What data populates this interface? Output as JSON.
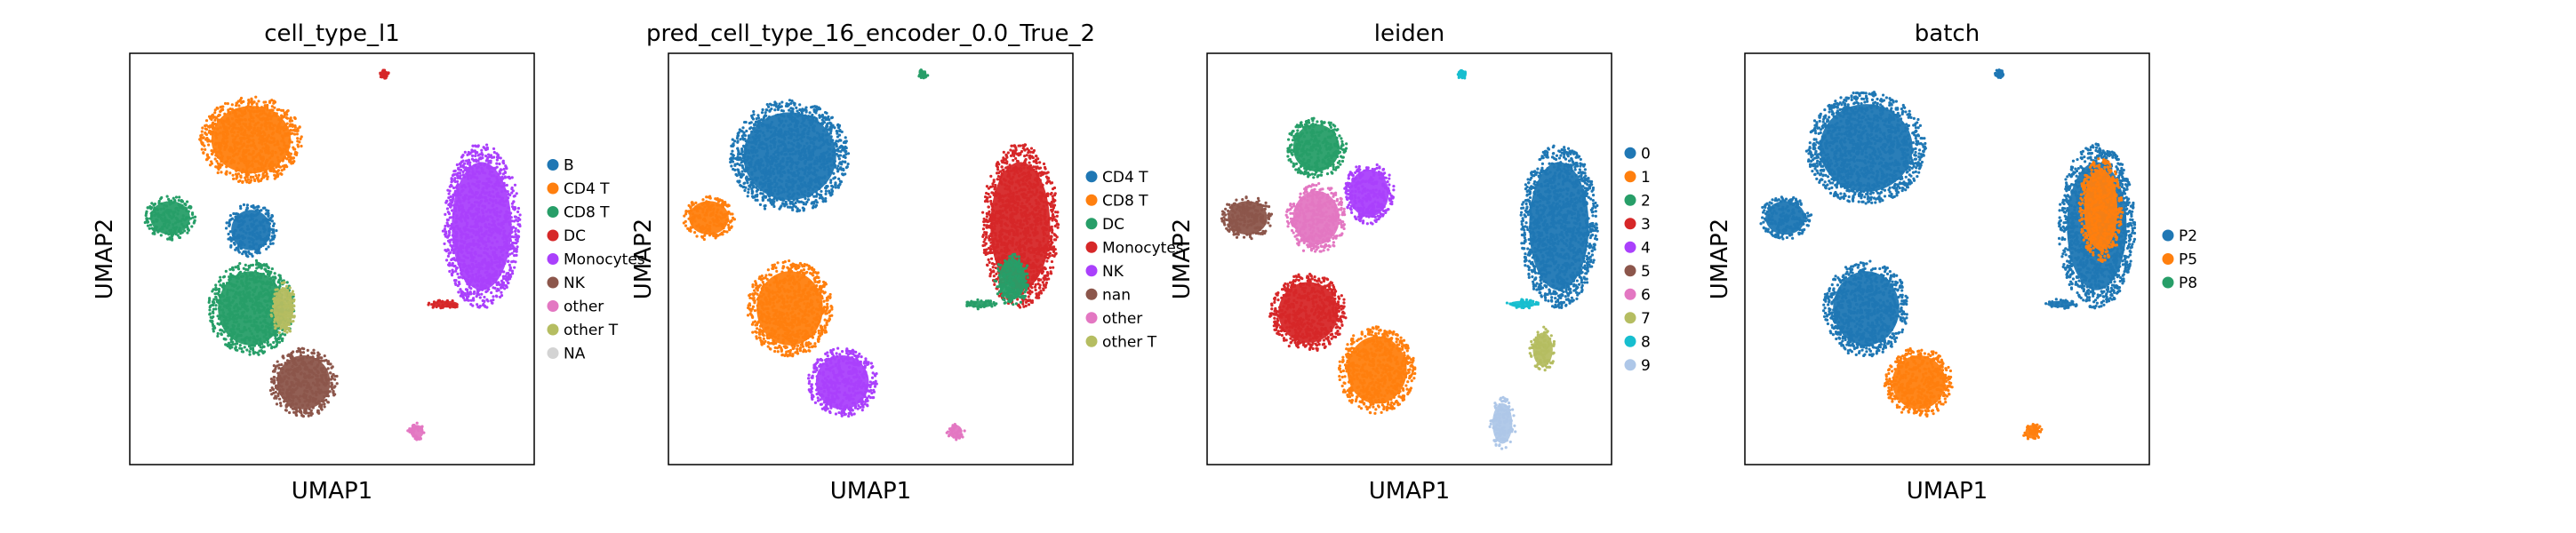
{
  "chart_data": [
    {
      "type": "scatter",
      "title": "cell_type_l1",
      "xlabel": "UMAP1",
      "ylabel": "UMAP2",
      "legend": {
        "placement": "right",
        "entries": [
          {
            "label": "B",
            "color": "#1f77b4"
          },
          {
            "label": "CD4 T",
            "color": "#ff7f0e"
          },
          {
            "label": "CD8 T",
            "color": "#279e68"
          },
          {
            "label": "DC",
            "color": "#d62728"
          },
          {
            "label": "Monocytes",
            "color": "#aa40fc"
          },
          {
            "label": "NK",
            "color": "#8c564b"
          },
          {
            "label": "other",
            "color": "#e377c2"
          },
          {
            "label": "other T",
            "color": "#b5bd61"
          },
          {
            "label": "NA",
            "color": "#d3d3d3"
          }
        ]
      },
      "clusters": [
        {
          "label": "CD4 T",
          "color": "#ff7f0e",
          "cx": 0.3,
          "cy": 0.79,
          "rx": 0.12,
          "ry": 0.1
        },
        {
          "label": "B",
          "color": "#1f77b4",
          "cx": 0.3,
          "cy": 0.57,
          "rx": 0.06,
          "ry": 0.06
        },
        {
          "label": "CD8 T",
          "color": "#279e68",
          "cx": 0.1,
          "cy": 0.6,
          "rx": 0.06,
          "ry": 0.05
        },
        {
          "label": "CD8 T",
          "color": "#279e68",
          "cx": 0.3,
          "cy": 0.38,
          "rx": 0.1,
          "ry": 0.11
        },
        {
          "label": "other T",
          "color": "#b5bd61",
          "cx": 0.38,
          "cy": 0.38,
          "rx": 0.03,
          "ry": 0.06
        },
        {
          "label": "NK",
          "color": "#8c564b",
          "cx": 0.43,
          "cy": 0.2,
          "rx": 0.08,
          "ry": 0.08
        },
        {
          "label": "Monocytes",
          "color": "#aa40fc",
          "cx": 0.87,
          "cy": 0.58,
          "rx": 0.09,
          "ry": 0.19
        },
        {
          "label": "DC",
          "color": "#d62728",
          "cx": 0.78,
          "cy": 0.39,
          "rx": 0.04,
          "ry": 0.01
        },
        {
          "label": "other",
          "color": "#e377c2",
          "cx": 0.71,
          "cy": 0.08,
          "rx": 0.02,
          "ry": 0.02
        },
        {
          "label": "DC",
          "color": "#d62728",
          "cx": 0.63,
          "cy": 0.95,
          "rx": 0.01,
          "ry": 0.01
        }
      ]
    },
    {
      "type": "scatter",
      "title": "pred_cell_type_16_encoder_0.0_True_2",
      "xlabel": "UMAP1",
      "ylabel": "UMAP2",
      "legend": {
        "placement": "right",
        "entries": [
          {
            "label": "CD4 T",
            "color": "#1f77b4"
          },
          {
            "label": "CD8 T",
            "color": "#ff7f0e"
          },
          {
            "label": "DC",
            "color": "#279e68"
          },
          {
            "label": "Monocytes",
            "color": "#d62728"
          },
          {
            "label": "NK",
            "color": "#aa40fc"
          },
          {
            "label": "nan",
            "color": "#8c564b"
          },
          {
            "label": "other",
            "color": "#e377c2"
          },
          {
            "label": "other T",
            "color": "#b5bd61"
          }
        ]
      },
      "clusters": [
        {
          "label": "CD4 T",
          "color": "#1f77b4",
          "cx": 0.3,
          "cy": 0.75,
          "rx": 0.14,
          "ry": 0.13
        },
        {
          "label": "CD8 T",
          "color": "#ff7f0e",
          "cx": 0.1,
          "cy": 0.6,
          "rx": 0.06,
          "ry": 0.05
        },
        {
          "label": "CD8 T",
          "color": "#ff7f0e",
          "cx": 0.3,
          "cy": 0.38,
          "rx": 0.1,
          "ry": 0.11
        },
        {
          "label": "NK",
          "color": "#aa40fc",
          "cx": 0.43,
          "cy": 0.2,
          "rx": 0.08,
          "ry": 0.08
        },
        {
          "label": "Monocytes",
          "color": "#d62728",
          "cx": 0.87,
          "cy": 0.58,
          "rx": 0.09,
          "ry": 0.19
        },
        {
          "label": "DC",
          "color": "#279e68",
          "cx": 0.85,
          "cy": 0.45,
          "rx": 0.04,
          "ry": 0.06
        },
        {
          "label": "DC",
          "color": "#279e68",
          "cx": 0.77,
          "cy": 0.39,
          "rx": 0.04,
          "ry": 0.01
        },
        {
          "label": "other",
          "color": "#e377c2",
          "cx": 0.71,
          "cy": 0.08,
          "rx": 0.02,
          "ry": 0.02
        },
        {
          "label": "DC",
          "color": "#279e68",
          "cx": 0.63,
          "cy": 0.95,
          "rx": 0.01,
          "ry": 0.01
        }
      ]
    },
    {
      "type": "scatter",
      "title": "leiden",
      "xlabel": "UMAP1",
      "ylabel": "UMAP2",
      "legend": {
        "placement": "right",
        "entries": [
          {
            "label": "0",
            "color": "#1f77b4"
          },
          {
            "label": "1",
            "color": "#ff7f0e"
          },
          {
            "label": "2",
            "color": "#279e68"
          },
          {
            "label": "3",
            "color": "#d62728"
          },
          {
            "label": "4",
            "color": "#aa40fc"
          },
          {
            "label": "5",
            "color": "#8c564b"
          },
          {
            "label": "6",
            "color": "#e377c2"
          },
          {
            "label": "7",
            "color": "#b5bd61"
          },
          {
            "label": "8",
            "color": "#17becf"
          },
          {
            "label": "9",
            "color": "#aec7e8"
          }
        ]
      },
      "clusters": [
        {
          "label": "2",
          "color": "#279e68",
          "cx": 0.27,
          "cy": 0.77,
          "rx": 0.07,
          "ry": 0.07
        },
        {
          "label": "4",
          "color": "#aa40fc",
          "cx": 0.4,
          "cy": 0.66,
          "rx": 0.06,
          "ry": 0.07
        },
        {
          "label": "6",
          "color": "#e377c2",
          "cx": 0.27,
          "cy": 0.6,
          "rx": 0.07,
          "ry": 0.08
        },
        {
          "label": "5",
          "color": "#8c564b",
          "cx": 0.1,
          "cy": 0.6,
          "rx": 0.06,
          "ry": 0.05
        },
        {
          "label": "3",
          "color": "#d62728",
          "cx": 0.25,
          "cy": 0.37,
          "rx": 0.09,
          "ry": 0.09
        },
        {
          "label": "1",
          "color": "#ff7f0e",
          "cx": 0.42,
          "cy": 0.23,
          "rx": 0.09,
          "ry": 0.1
        },
        {
          "label": "0",
          "color": "#1f77b4",
          "cx": 0.87,
          "cy": 0.58,
          "rx": 0.09,
          "ry": 0.19
        },
        {
          "label": "8",
          "color": "#17becf",
          "cx": 0.78,
          "cy": 0.39,
          "rx": 0.04,
          "ry": 0.01
        },
        {
          "label": "7",
          "color": "#b5bd61",
          "cx": 0.83,
          "cy": 0.28,
          "rx": 0.03,
          "ry": 0.05
        },
        {
          "label": "9",
          "color": "#aec7e8",
          "cx": 0.73,
          "cy": 0.1,
          "rx": 0.03,
          "ry": 0.06
        },
        {
          "label": "8",
          "color": "#17becf",
          "cx": 0.63,
          "cy": 0.95,
          "rx": 0.01,
          "ry": 0.01
        }
      ]
    },
    {
      "type": "scatter",
      "title": "batch",
      "xlabel": "UMAP1",
      "ylabel": "UMAP2",
      "legend": {
        "placement": "right",
        "entries": [
          {
            "label": "P2",
            "color": "#1f77b4"
          },
          {
            "label": "P5",
            "color": "#ff7f0e"
          },
          {
            "label": "P8",
            "color": "#279e68"
          }
        ]
      },
      "clusters": [
        {
          "label": "P2",
          "color": "#1f77b4",
          "cx": 0.3,
          "cy": 0.77,
          "rx": 0.14,
          "ry": 0.13
        },
        {
          "label": "P2",
          "color": "#1f77b4",
          "cx": 0.1,
          "cy": 0.6,
          "rx": 0.06,
          "ry": 0.05
        },
        {
          "label": "P2",
          "color": "#1f77b4",
          "cx": 0.3,
          "cy": 0.38,
          "rx": 0.1,
          "ry": 0.11
        },
        {
          "label": "P5",
          "color": "#ff7f0e",
          "cx": 0.43,
          "cy": 0.2,
          "rx": 0.08,
          "ry": 0.08
        },
        {
          "label": "P2",
          "color": "#1f77b4",
          "cx": 0.87,
          "cy": 0.58,
          "rx": 0.09,
          "ry": 0.19
        },
        {
          "label": "P5",
          "color": "#ff7f0e",
          "cx": 0.88,
          "cy": 0.62,
          "rx": 0.05,
          "ry": 0.12
        },
        {
          "label": "P2",
          "color": "#1f77b4",
          "cx": 0.78,
          "cy": 0.39,
          "rx": 0.04,
          "ry": 0.01
        },
        {
          "label": "P5",
          "color": "#ff7f0e",
          "cx": 0.71,
          "cy": 0.08,
          "rx": 0.02,
          "ry": 0.02
        },
        {
          "label": "P2",
          "color": "#1f77b4",
          "cx": 0.63,
          "cy": 0.95,
          "rx": 0.01,
          "ry": 0.01
        }
      ]
    }
  ]
}
